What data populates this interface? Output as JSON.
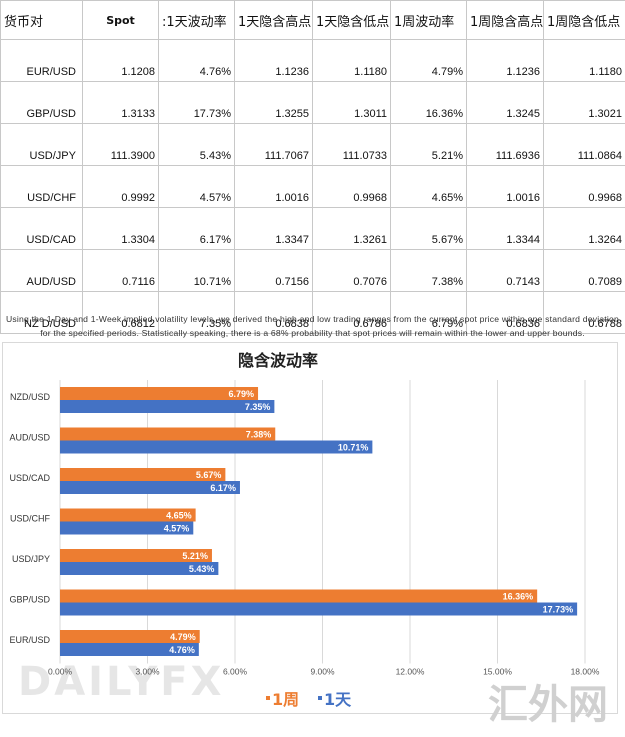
{
  "table": {
    "headers": [
      "货币对",
      "Spot",
      ":1天波动率",
      "1天隐含高点",
      "1天隐含低点",
      "1周波动率",
      "1周隐含高点",
      "1周隐含低点"
    ],
    "rows": [
      [
        "EUR/USD",
        "1.1208",
        "4.76%",
        "1.1236",
        "1.1180",
        "4.79%",
        "1.1236",
        "1.1180"
      ],
      [
        "GBP/USD",
        "1.3133",
        "17.73%",
        "1.3255",
        "1.3011",
        "16.36%",
        "1.3245",
        "1.3021"
      ],
      [
        "USD/JPY",
        "111.3900",
        "5.43%",
        "111.7067",
        "111.0733",
        "5.21%",
        "111.6936",
        "111.0864"
      ],
      [
        "USD/CHF",
        "0.9992",
        "4.57%",
        "1.0016",
        "0.9968",
        "4.65%",
        "1.0016",
        "0.9968"
      ],
      [
        "USD/CAD",
        "1.3304",
        "6.17%",
        "1.3347",
        "1.3261",
        "5.67%",
        "1.3344",
        "1.3264"
      ],
      [
        "AUD/USD",
        "0.7116",
        "10.71%",
        "0.7156",
        "0.7076",
        "7.38%",
        "0.7143",
        "0.7089"
      ],
      [
        "NZ D/USD",
        "0.6812",
        "7.35%",
        "0.6838",
        "0.6786",
        "6.79%",
        "0.6836",
        "0.6788"
      ]
    ],
    "footnote": "Using the 1-Day and 1-Week implied volatility levels, we derived the high and low trading ranges from the current spot price within one standard deviation for the specified periods. Statistically speaking, there is a 68% probability that spot prices will remain within the lower and upper bounds."
  },
  "chart_data": {
    "type": "bar",
    "orientation": "horizontal",
    "title": "隐含波动率",
    "categories": [
      "NZD/USD",
      "AUD/USD",
      "USD/CAD",
      "USD/CHF",
      "USD/JPY",
      "GBP/USD",
      "EUR/USD"
    ],
    "series": [
      {
        "name": "1周",
        "color": "#ed7d31",
        "values": [
          6.79,
          7.38,
          5.67,
          4.65,
          5.21,
          16.36,
          4.79
        ],
        "labels": [
          "6.79%",
          "7.38%",
          "5.67%",
          "4.65%",
          "5.21%",
          "16.36%",
          "4.79%"
        ]
      },
      {
        "name": "1天",
        "color": "#4472c4",
        "values": [
          7.35,
          10.71,
          6.17,
          4.57,
          5.43,
          17.73,
          4.76
        ],
        "labels": [
          "7.35%",
          "10.71%",
          "6.17%",
          "4.57%",
          "5.43%",
          "17.73%",
          "4.76%"
        ]
      }
    ],
    "xlim": [
      0,
      18
    ],
    "xticks": [
      0,
      3,
      6,
      9,
      12,
      15,
      18
    ],
    "xtick_labels": [
      "0.00%",
      "3.00%",
      "6.00%",
      "9.00%",
      "12.00%",
      "15.00%",
      "18.00%"
    ],
    "legend_position": "bottom",
    "legend_labels": [
      "1周",
      "1天"
    ],
    "grid": "vertical"
  },
  "watermarks": {
    "logo": "DAILYFX",
    "site": "汇外网"
  },
  "colors": {
    "week": "#ed7d31",
    "day": "#4472c4",
    "grid": "#d9d9d9"
  }
}
